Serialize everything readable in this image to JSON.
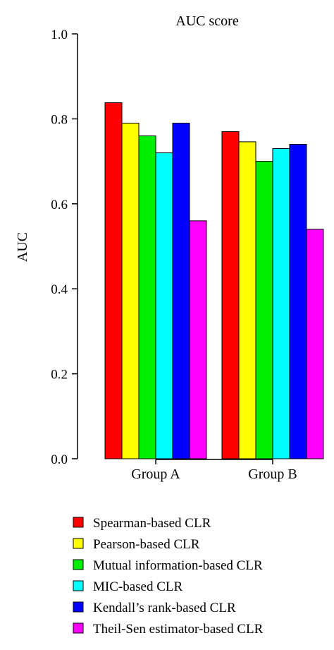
{
  "chart_data": {
    "type": "bar",
    "title": "AUC score",
    "xlabel": "",
    "ylabel": "AUC",
    "ylim": [
      0,
      1.0
    ],
    "yticks": [
      "0.0",
      "0.2",
      "0.4",
      "0.6",
      "0.8",
      "1.0"
    ],
    "categories": [
      "Group A",
      "Group B"
    ],
    "series": [
      {
        "name": "Spearman-based CLR",
        "color": "#ff0000",
        "values": [
          0.838,
          0.77
        ]
      },
      {
        "name": "Pearson-based CLR",
        "color": "#ffff00",
        "values": [
          0.79,
          0.746
        ]
      },
      {
        "name": "Mutual information-based CLR",
        "color": "#00ee00",
        "values": [
          0.76,
          0.7
        ]
      },
      {
        "name": "MIC-based CLR",
        "color": "#00ffff",
        "values": [
          0.72,
          0.73
        ]
      },
      {
        "name": "Kendall’s rank-based CLR",
        "color": "#0000ff",
        "values": [
          0.79,
          0.74
        ]
      },
      {
        "name": "Theil-Sen estimator-based CLR",
        "color": "#ff00ff",
        "values": [
          0.56,
          0.54
        ]
      }
    ],
    "grid": false,
    "legend_position": "bottom"
  }
}
